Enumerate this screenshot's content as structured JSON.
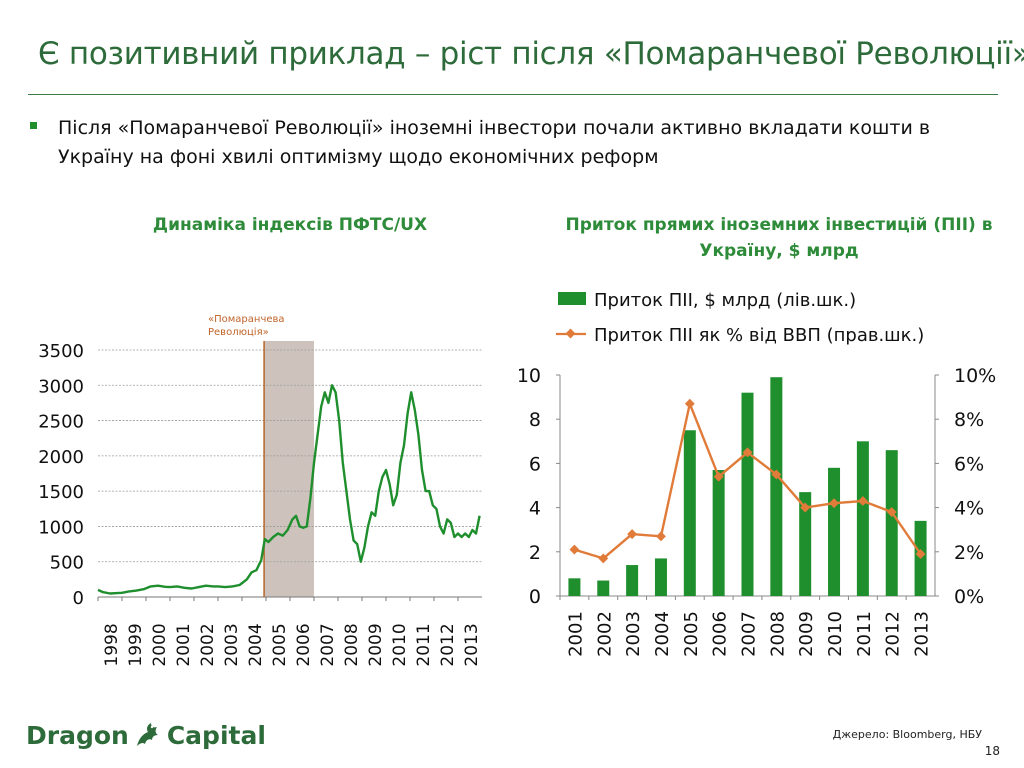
{
  "slide": {
    "title": "Є позитивний приклад – ріст після «Помаранчевої Революції»",
    "bullet": "Після «Помаранчевої Революції» іноземні інвестори почали активно вкладати кошти в Україну на фоні хвилі оптимізму щодо економічних реформ",
    "logo_left": "Dragon",
    "logo_right": "Capital",
    "source": "Джерело: Bloomberg, НБУ",
    "page_number": "18",
    "colors": {
      "title": "#2e6b3a",
      "accent_green": "#1f8f2e",
      "orange": "#e07b39",
      "shade": "#cdc3bc"
    }
  },
  "chart_data": [
    {
      "type": "line",
      "title": "Динаміка індексів ПФТС/UX",
      "annotation": "«Помаранчева Революція»",
      "shaded_range": [
        2004.92,
        2007.0
      ],
      "event_line_x": 2004.92,
      "ylim": [
        0,
        3500
      ],
      "y_ticks": [
        "0",
        "500",
        "1000",
        "1500",
        "2000",
        "2500",
        "3000",
        "3500"
      ],
      "x_ticks": [
        "1998",
        "1999",
        "2000",
        "2001",
        "2002",
        "2003",
        "2004",
        "2005",
        "2006",
        "2007",
        "2008",
        "2009",
        "2010",
        "2011",
        "2012",
        "2013"
      ],
      "xlim": [
        1998,
        2014
      ],
      "grid": true,
      "series": [
        {
          "color": "#1f8f2e",
          "x": [
            1998.0,
            1998.2,
            1998.5,
            1998.8,
            1999.0,
            1999.3,
            1999.6,
            1999.9,
            2000.2,
            2000.5,
            2000.8,
            2001.0,
            2001.3,
            2001.6,
            2001.9,
            2002.2,
            2002.5,
            2002.8,
            2003.0,
            2003.3,
            2003.6,
            2003.9,
            2004.2,
            2004.4,
            2004.6,
            2004.8,
            2004.95,
            2005.1,
            2005.3,
            2005.5,
            2005.7,
            2005.9,
            2006.1,
            2006.25,
            2006.4,
            2006.55,
            2006.7,
            2006.85,
            2007.0,
            2007.15,
            2007.3,
            2007.45,
            2007.6,
            2007.75,
            2007.9,
            2008.05,
            2008.2,
            2008.35,
            2008.5,
            2008.65,
            2008.8,
            2008.95,
            2009.1,
            2009.25,
            2009.4,
            2009.55,
            2009.7,
            2009.85,
            2010.0,
            2010.15,
            2010.3,
            2010.45,
            2010.6,
            2010.75,
            2010.9,
            2011.05,
            2011.2,
            2011.35,
            2011.5,
            2011.65,
            2011.8,
            2011.95,
            2012.1,
            2012.25,
            2012.4,
            2012.55,
            2012.7,
            2012.85,
            2013.0,
            2013.15,
            2013.3,
            2013.45,
            2013.6,
            2013.75,
            2013.9
          ],
          "values": [
            100,
            70,
            50,
            55,
            60,
            80,
            90,
            110,
            150,
            160,
            145,
            140,
            150,
            130,
            120,
            140,
            160,
            150,
            150,
            140,
            150,
            170,
            250,
            350,
            380,
            520,
            820,
            780,
            850,
            900,
            870,
            950,
            1100,
            1150,
            1000,
            980,
            1000,
            1400,
            1900,
            2300,
            2700,
            2900,
            2750,
            3000,
            2900,
            2500,
            1900,
            1500,
            1100,
            800,
            750,
            500,
            700,
            1000,
            1200,
            1150,
            1500,
            1700,
            1800,
            1600,
            1300,
            1450,
            1900,
            2150,
            2600,
            2900,
            2650,
            2300,
            1800,
            1500,
            1500,
            1300,
            1250,
            1000,
            900,
            1100,
            1050,
            850,
            900,
            850,
            900,
            850,
            950,
            900,
            1150
          ]
        }
      ]
    },
    {
      "type": "bar",
      "title": "Приток прямих іноземних інвестицій (ПІІ) в Україну, $ млрд",
      "categories": [
        "2001",
        "2002",
        "2003",
        "2004",
        "2005",
        "2006",
        "2007",
        "2008",
        "2009",
        "2010",
        "2011",
        "2012",
        "2013"
      ],
      "ylim": [
        0,
        10
      ],
      "y_ticks": [
        "0",
        "2",
        "4",
        "6",
        "8",
        "10"
      ],
      "y2lim": [
        0,
        10
      ],
      "y2_ticks": [
        "0%",
        "2%",
        "4%",
        "6%",
        "8%",
        "10%"
      ],
      "legend_position": "top",
      "series": [
        {
          "name": "Приток ПІІ, $ млрд (лів.шк.)",
          "type": "bar",
          "color": "#1f8f2e",
          "values": [
            0.8,
            0.7,
            1.4,
            1.7,
            7.5,
            5.7,
            9.2,
            9.9,
            4.7,
            5.8,
            7.0,
            6.6,
            3.4
          ]
        },
        {
          "name": "Приток ПІІ як %  від ВВП (прав.шк.)",
          "type": "line",
          "color": "#e07b39",
          "values": [
            2.1,
            1.7,
            2.8,
            2.7,
            8.7,
            5.4,
            6.5,
            5.5,
            4.0,
            4.2,
            4.3,
            3.8,
            1.9
          ]
        }
      ]
    }
  ]
}
